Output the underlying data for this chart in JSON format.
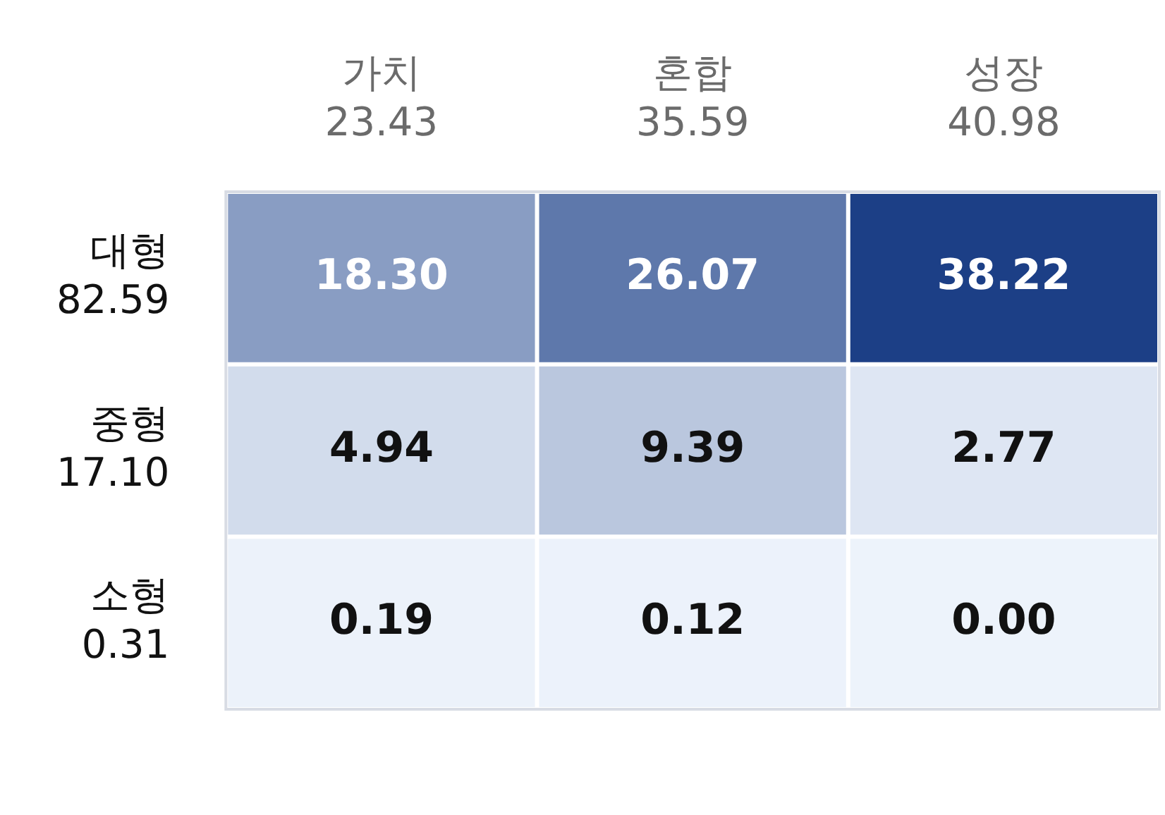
{
  "chart_data": {
    "type": "heatmap",
    "categories": [
      "가치\n23.43",
      "혼합\n35.59",
      "성장\n40.98"
    ],
    "y_categories": [
      "대형\n82.59",
      "중형\n17.10",
      "소형\n0.31"
    ],
    "cells": [
      [
        18.3,
        26.07,
        38.22
      ],
      [
        4.94,
        9.39,
        2.77
      ],
      [
        0.19,
        0.12,
        0.0
      ]
    ],
    "cell_labels": [
      [
        "18.30",
        "26.07",
        "38.22"
      ],
      [
        "4.94",
        "9.39",
        "2.77"
      ],
      [
        "0.19",
        "0.12",
        "0.00"
      ]
    ],
    "colors": [
      "#edf3fb",
      "#1c3f86"
    ]
  }
}
